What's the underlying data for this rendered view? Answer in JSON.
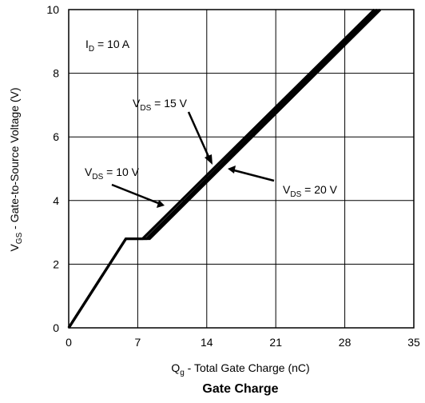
{
  "chart_data": {
    "type": "line",
    "title": "Gate Charge",
    "xlabel": {
      "main": "Q",
      "sub": "g",
      "rest": " - Total Gate Charge (nC)"
    },
    "ylabel": {
      "main": "V",
      "sub": "GS",
      "rest": " - Gate-to-Source Voltage (V)"
    },
    "xlim": [
      0,
      35
    ],
    "ylim": [
      0,
      10
    ],
    "x_ticks": [
      "0",
      "7",
      "14",
      "21",
      "28",
      "35"
    ],
    "y_ticks": [
      "0",
      "2",
      "4",
      "6",
      "8",
      "10"
    ],
    "grid": true,
    "series": [
      {
        "name_main": "V",
        "name_sub": "DS",
        "name_rest": " = 10 V",
        "points": [
          [
            0,
            0
          ],
          [
            5.8,
            2.8
          ],
          [
            7.5,
            2.8
          ],
          [
            31.0,
            10
          ]
        ]
      },
      {
        "name_main": "V",
        "name_sub": "DS",
        "name_rest": " = 15 V",
        "points": [
          [
            0,
            0
          ],
          [
            5.8,
            2.8
          ],
          [
            7.9,
            2.8
          ],
          [
            31.3,
            10
          ]
        ]
      },
      {
        "name_main": "V",
        "name_sub": "DS",
        "name_rest": " = 20 V",
        "points": [
          [
            0,
            0
          ],
          [
            5.8,
            2.8
          ],
          [
            8.2,
            2.8
          ],
          [
            31.6,
            10
          ]
        ]
      }
    ],
    "annotations": [
      {
        "main": "I",
        "sub": "D",
        "rest": " = 10 A"
      }
    ]
  }
}
